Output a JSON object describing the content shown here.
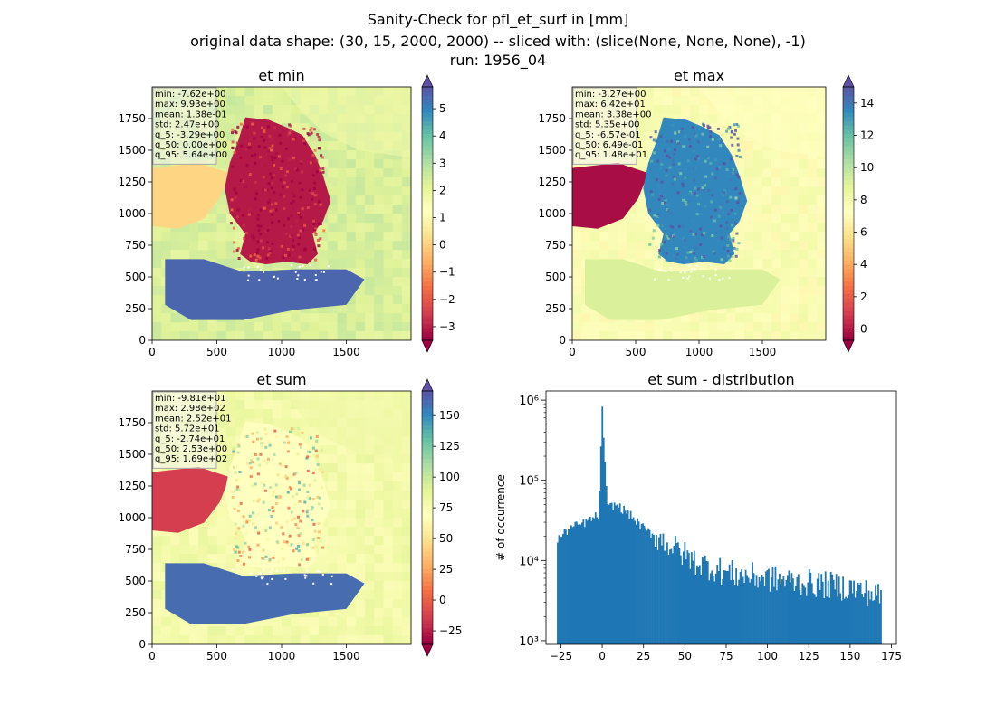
{
  "figure": {
    "title_lines": [
      "Sanity-Check for pfl_et_surf in [mm]",
      "original data shape: (30, 15, 2000, 2000) -- sliced with: (slice(None, None, None), -1)",
      "run: 1956_04"
    ]
  },
  "chart_data": [
    {
      "type": "heatmap",
      "title": "et min",
      "xlim": [
        0,
        2000
      ],
      "ylim": [
        0,
        2000
      ],
      "xticks": [
        "0",
        "500",
        "1000",
        "1500"
      ],
      "yticks": [
        "0",
        "250",
        "500",
        "750",
        "1000",
        "1250",
        "1500",
        "1750"
      ],
      "colormap": "Spectral",
      "colorbar": {
        "vmin": -3.5,
        "vmax": 5.8,
        "ticks": [
          "−3",
          "−2",
          "−1",
          "0",
          "1",
          "2",
          "3",
          "4",
          "5"
        ],
        "tick_values": [
          -3,
          -2,
          -1,
          0,
          1,
          2,
          3,
          4,
          5
        ],
        "extend": "both"
      },
      "stats_box": [
        "min: -7.62e+00",
        "max: 9.93e+00",
        "mean: 1.38e-01",
        "std: 2.47e+00",
        "q_5: -3.29e+00",
        "q_50: 0.00e+00",
        "q_95: 5.64e+00"
      ]
    },
    {
      "type": "heatmap",
      "title": "et max",
      "xlim": [
        0,
        2000
      ],
      "ylim": [
        0,
        2000
      ],
      "xticks": [
        "0",
        "500",
        "1000",
        "1500"
      ],
      "yticks": [
        "0",
        "250",
        "500",
        "750",
        "1000",
        "1250",
        "1500",
        "1750"
      ],
      "colormap": "Spectral",
      "colorbar": {
        "vmin": -0.7,
        "vmax": 15.0,
        "ticks": [
          "0",
          "2",
          "4",
          "6",
          "8",
          "10",
          "12",
          "14"
        ],
        "tick_values": [
          0,
          2,
          4,
          6,
          8,
          10,
          12,
          14
        ],
        "extend": "both"
      },
      "stats_box": [
        "min: -3.27e+00",
        "max: 6.42e+01",
        "mean: 3.38e+00",
        "std: 5.35e+00",
        "q_5: -6.57e-01",
        "q_50: 6.49e-01",
        "q_95: 1.48e+01"
      ]
    },
    {
      "type": "heatmap",
      "title": "et sum",
      "xlim": [
        0,
        2000
      ],
      "ylim": [
        0,
        2000
      ],
      "xticks": [
        "0",
        "500",
        "1000",
        "1500"
      ],
      "yticks": [
        "0",
        "250",
        "500",
        "750",
        "1000",
        "1250",
        "1500",
        "1750"
      ],
      "colormap": "Spectral",
      "colorbar": {
        "vmin": -36,
        "vmax": 170,
        "ticks": [
          "−25",
          "0",
          "25",
          "50",
          "75",
          "100",
          "125",
          "150"
        ],
        "tick_values": [
          -25,
          0,
          25,
          50,
          75,
          100,
          125,
          150
        ],
        "extend": "both"
      },
      "stats_box": [
        "min: -9.81e+01",
        "max: 2.98e+02",
        "mean: 2.52e+01",
        "std: 5.72e+01",
        "q_5: -2.74e+01",
        "q_50: 2.53e+00",
        "q_95: 1.69e+02"
      ]
    },
    {
      "type": "bar",
      "title": "et sum - distribution",
      "ylabel": "# of occurrence",
      "yscale": "log",
      "xlim": [
        -34,
        178
      ],
      "ylim": [
        900,
        1300000
      ],
      "xticks": [
        "−25",
        "0",
        "25",
        "50",
        "75",
        "100",
        "125",
        "150",
        "175"
      ],
      "xtick_values": [
        -25,
        0,
        25,
        50,
        75,
        100,
        125,
        150,
        175
      ],
      "yticks": [
        "10³",
        "10⁴",
        "10⁵",
        "10⁶"
      ],
      "ytick_values": [
        1000,
        10000,
        100000,
        1000000
      ],
      "bin_range": [
        -27.4,
        169.0
      ],
      "bins": 240,
      "color": "#1f77b4",
      "envelope": [
        [
          -27.4,
          18000
        ],
        [
          -20,
          25000
        ],
        [
          -10,
          30000
        ],
        [
          -2,
          37000
        ],
        [
          0,
          830000
        ],
        [
          3,
          45000
        ],
        [
          8,
          50000
        ],
        [
          15,
          40000
        ],
        [
          25,
          25000
        ],
        [
          40,
          16000
        ],
        [
          55,
          10000
        ],
        [
          75,
          7000
        ],
        [
          100,
          6000
        ],
        [
          125,
          5200
        ],
        [
          150,
          4600
        ],
        [
          169,
          3500
        ]
      ]
    }
  ]
}
